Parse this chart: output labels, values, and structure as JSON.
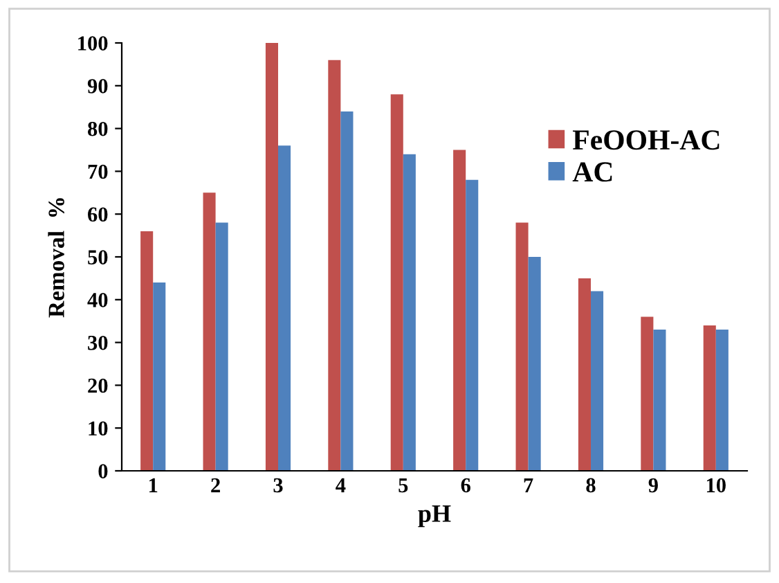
{
  "chart_data": {
    "type": "bar",
    "xlabel": "pH",
    "ylabel": "Removal  %",
    "categories": [
      "1",
      "2",
      "3",
      "4",
      "5",
      "6",
      "7",
      "8",
      "9",
      "10"
    ],
    "series": [
      {
        "name": "FeOOH-AC",
        "color": "#c0504d",
        "values": [
          56,
          65,
          100,
          96,
          88,
          75,
          58,
          45,
          36,
          34
        ]
      },
      {
        "name": "AC",
        "color": "#4f81bd",
        "values": [
          44,
          58,
          76,
          84,
          74,
          68,
          50,
          42,
          33,
          33
        ]
      }
    ],
    "ylim": [
      0,
      100
    ],
    "yticks": [
      0,
      10,
      20,
      30,
      40,
      50,
      60,
      70,
      80,
      90,
      100
    ],
    "grid": false,
    "legend": "right"
  }
}
